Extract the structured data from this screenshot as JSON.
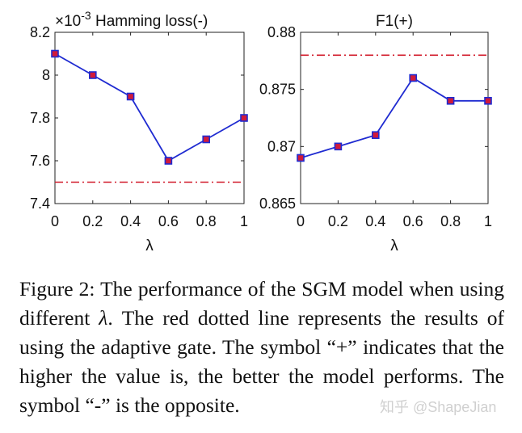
{
  "chart_data": [
    {
      "type": "line",
      "title": "Hamming loss(-)",
      "y_multiplier_label": "×10",
      "y_multiplier_exponent": "-3",
      "xlabel": "λ",
      "ylabel": "",
      "x": [
        0,
        0.2,
        0.4,
        0.6,
        0.8,
        1
      ],
      "x_tick_labels": [
        "0",
        "0.2",
        "0.4",
        "0.6",
        "0.8",
        "1"
      ],
      "xlim": [
        0,
        1
      ],
      "ylim": [
        7.4,
        8.2
      ],
      "y_ticks": [
        7.4,
        7.6,
        7.8,
        8,
        8.2
      ],
      "y_tick_labels": [
        "7.4",
        "7.6",
        "7.8",
        "8",
        "8.2"
      ],
      "series": [
        {
          "name": "SGM",
          "values": [
            8.1,
            8.0,
            7.9,
            7.6,
            7.7,
            7.8
          ],
          "color": "#1f2bd1",
          "marker_color": "#d11a3a"
        }
      ],
      "reference_line": {
        "value": 7.5,
        "label": "adaptive gate",
        "color": "#d11a2a",
        "style": "dash-dot"
      },
      "grid": false
    },
    {
      "type": "line",
      "title": "F1(+)",
      "xlabel": "λ",
      "ylabel": "",
      "x": [
        0,
        0.2,
        0.4,
        0.6,
        0.8,
        1
      ],
      "x_tick_labels": [
        "0",
        "0.2",
        "0.4",
        "0.6",
        "0.8",
        "1"
      ],
      "xlim": [
        0,
        1
      ],
      "ylim": [
        0.865,
        0.88
      ],
      "y_ticks": [
        0.865,
        0.87,
        0.875,
        0.88
      ],
      "y_tick_labels": [
        "0.865",
        "0.87",
        "0.875",
        "0.88"
      ],
      "series": [
        {
          "name": "SGM",
          "values": [
            0.869,
            0.87,
            0.871,
            0.876,
            0.874,
            0.874
          ],
          "color": "#1f2bd1",
          "marker_color": "#d11a3a"
        }
      ],
      "reference_line": {
        "value": 0.878,
        "label": "adaptive gate",
        "color": "#d11a2a",
        "style": "dash-dot"
      },
      "grid": false
    }
  ],
  "caption": {
    "label": "Figure 2:",
    "text_before_symbol": "The performance of the SGM model when using different",
    "symbol": "λ",
    "text_after_symbol": ". The red dotted line represents the results of using the adaptive gate. The symbol “+” indicates that the higher the value is, the better the model performs. The symbol “-” is the opposite."
  },
  "watermark": "知乎 @ShapeJian"
}
